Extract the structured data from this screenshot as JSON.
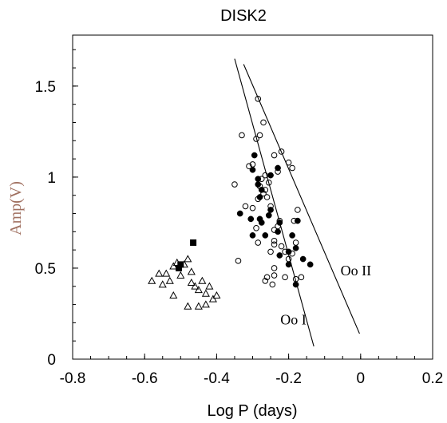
{
  "chart_data": {
    "type": "scatter",
    "title": "DISK2",
    "xlabel": "Log P (days)",
    "ylabel": "Amp(V)",
    "xlim": [
      -0.8,
      0.2
    ],
    "ylim": [
      0,
      1.78
    ],
    "x_ticks": [
      -0.8,
      -0.6,
      -0.4,
      -0.2,
      0,
      0.2
    ],
    "x_tick_labels": [
      "-0.8",
      "-0.6",
      "-0.4",
      "-0.2",
      "0",
      "0.2"
    ],
    "y_ticks": [
      0,
      0.5,
      1,
      1.5
    ],
    "y_tick_labels": [
      "0",
      "0.5",
      "1",
      "1.5"
    ],
    "grid": false,
    "colors": {
      "axis": "#000000",
      "ylabel": "#a07060",
      "marker": "#000000"
    },
    "series": [
      {
        "marker": "open-circle",
        "points": [
          [
            -0.285,
            1.43
          ],
          [
            -0.27,
            1.3
          ],
          [
            -0.33,
            1.23
          ],
          [
            -0.29,
            1.21
          ],
          [
            -0.28,
            1.23
          ],
          [
            -0.24,
            1.12
          ],
          [
            -0.22,
            1.14
          ],
          [
            -0.3,
            1.07
          ],
          [
            -0.31,
            1.06
          ],
          [
            -0.2,
            1.08
          ],
          [
            -0.19,
            1.05
          ],
          [
            -0.23,
            1.03
          ],
          [
            -0.265,
            1.01
          ],
          [
            -0.275,
            0.99
          ],
          [
            -0.255,
            0.97
          ],
          [
            -0.28,
            0.95
          ],
          [
            -0.265,
            0.93
          ],
          [
            -0.27,
            0.91
          ],
          [
            -0.26,
            0.89
          ],
          [
            -0.285,
            0.88
          ],
          [
            -0.35,
            0.96
          ],
          [
            -0.32,
            0.84
          ],
          [
            -0.25,
            0.84
          ],
          [
            -0.3,
            0.83
          ],
          [
            -0.225,
            0.76
          ],
          [
            -0.23,
            0.73
          ],
          [
            -0.175,
            0.82
          ],
          [
            -0.185,
            0.76
          ],
          [
            -0.24,
            0.71
          ],
          [
            -0.29,
            0.72
          ],
          [
            -0.285,
            0.64
          ],
          [
            -0.24,
            0.65
          ],
          [
            -0.24,
            0.63
          ],
          [
            -0.22,
            0.62
          ],
          [
            -0.25,
            0.59
          ],
          [
            -0.21,
            0.59
          ],
          [
            -0.18,
            0.64
          ],
          [
            -0.19,
            0.58
          ],
          [
            -0.2,
            0.55
          ],
          [
            -0.24,
            0.5
          ],
          [
            -0.24,
            0.46
          ],
          [
            -0.26,
            0.45
          ],
          [
            -0.21,
            0.45
          ],
          [
            -0.265,
            0.43
          ],
          [
            -0.245,
            0.41
          ],
          [
            -0.165,
            0.45
          ],
          [
            -0.18,
            0.44
          ],
          [
            -0.34,
            0.54
          ]
        ]
      },
      {
        "marker": "filled-circle",
        "points": [
          [
            -0.295,
            1.12
          ],
          [
            -0.3,
            1.04
          ],
          [
            -0.285,
            0.99
          ],
          [
            -0.23,
            1.05
          ],
          [
            -0.25,
            1.01
          ],
          [
            -0.285,
            0.96
          ],
          [
            -0.275,
            0.93
          ],
          [
            -0.28,
            0.89
          ],
          [
            -0.25,
            0.82
          ],
          [
            -0.255,
            0.79
          ],
          [
            -0.335,
            0.8
          ],
          [
            -0.305,
            0.77
          ],
          [
            -0.28,
            0.77
          ],
          [
            -0.275,
            0.75
          ],
          [
            -0.225,
            0.75
          ],
          [
            -0.175,
            0.76
          ],
          [
            -0.23,
            0.7
          ],
          [
            -0.3,
            0.68
          ],
          [
            -0.265,
            0.68
          ],
          [
            -0.19,
            0.68
          ],
          [
            -0.18,
            0.61
          ],
          [
            -0.2,
            0.59
          ],
          [
            -0.225,
            0.57
          ],
          [
            -0.16,
            0.55
          ],
          [
            -0.2,
            0.52
          ],
          [
            -0.14,
            0.52
          ],
          [
            -0.18,
            0.41
          ]
        ]
      },
      {
        "marker": "open-triangle",
        "points": [
          [
            -0.58,
            0.43
          ],
          [
            -0.56,
            0.47
          ],
          [
            -0.54,
            0.47
          ],
          [
            -0.53,
            0.43
          ],
          [
            -0.55,
            0.41
          ],
          [
            -0.52,
            0.51
          ],
          [
            -0.51,
            0.53
          ],
          [
            -0.49,
            0.52
          ],
          [
            -0.48,
            0.55
          ],
          [
            -0.47,
            0.48
          ],
          [
            -0.47,
            0.42
          ],
          [
            -0.46,
            0.4
          ],
          [
            -0.45,
            0.38
          ],
          [
            -0.43,
            0.36
          ],
          [
            -0.42,
            0.4
          ],
          [
            -0.41,
            0.33
          ],
          [
            -0.48,
            0.29
          ],
          [
            -0.45,
            0.29
          ],
          [
            -0.52,
            0.35
          ],
          [
            -0.43,
            0.3
          ],
          [
            -0.4,
            0.35
          ],
          [
            -0.44,
            0.43
          ],
          [
            -0.5,
            0.46
          ]
        ]
      },
      {
        "marker": "filled-square",
        "points": [
          [
            -0.465,
            0.64
          ],
          [
            -0.505,
            0.5
          ],
          [
            -0.5,
            0.52
          ]
        ]
      }
    ],
    "lines": [
      {
        "label": "Oo I",
        "from": [
          -0.35,
          1.65
        ],
        "to": [
          -0.13,
          0.07
        ]
      },
      {
        "label": "Oo II",
        "from": [
          -0.325,
          1.62
        ],
        "to": [
          -0.003,
          0.14
        ]
      }
    ]
  }
}
